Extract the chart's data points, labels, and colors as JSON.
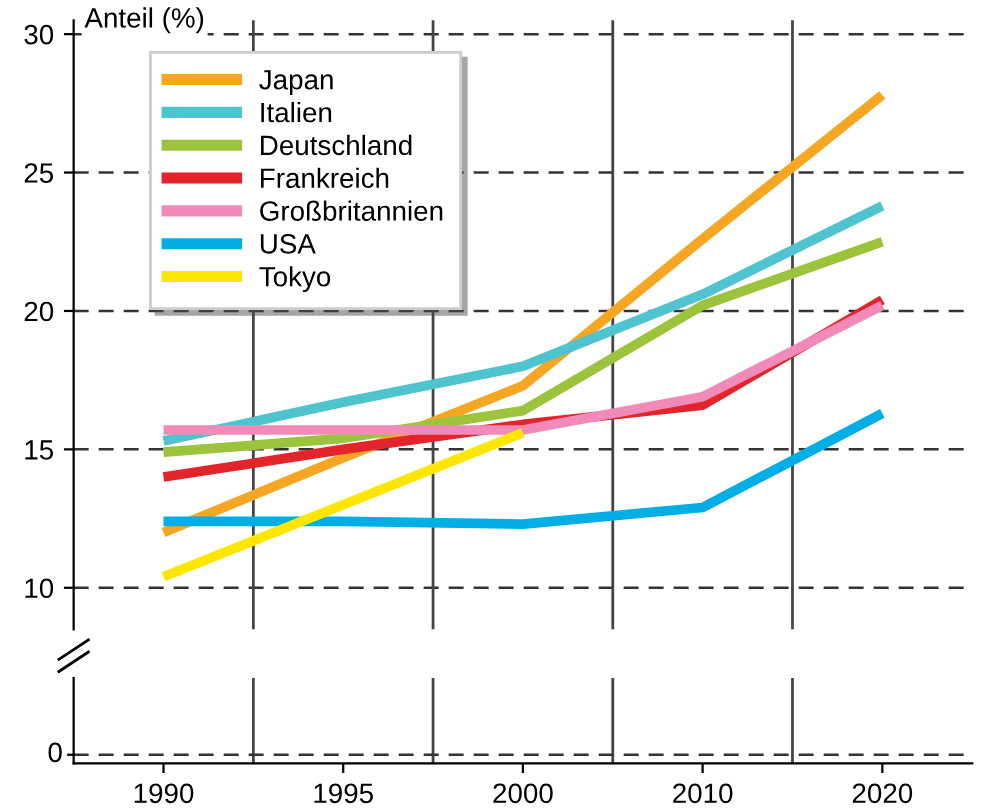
{
  "chart_data": {
    "type": "line",
    "ylabel": "Anteil (%)",
    "categories": [
      "1990",
      "1995",
      "2000",
      "2010",
      "2020"
    ],
    "series": [
      {
        "name": "Japan",
        "color": "#f5a623",
        "values": [
          12.0,
          14.7,
          17.3,
          22.6,
          27.8
        ]
      },
      {
        "name": "Italien",
        "color": "#4fc4cf",
        "values": [
          15.3,
          16.7,
          18.0,
          20.6,
          23.8
        ]
      },
      {
        "name": "Deutschland",
        "color": "#9bc43c",
        "values": [
          14.9,
          15.4,
          16.4,
          20.2,
          22.5
        ]
      },
      {
        "name": "Frankreich",
        "color": "#e3242b",
        "values": [
          14.0,
          15.0,
          15.9,
          16.6,
          20.4
        ]
      },
      {
        "name": "Großbritannien",
        "color": "#f08bb9",
        "values": [
          15.7,
          15.7,
          15.7,
          16.9,
          20.2
        ]
      },
      {
        "name": "USA",
        "color": "#00aee6",
        "values": [
          12.4,
          12.4,
          12.3,
          12.9,
          16.3
        ]
      },
      {
        "name": "Tokyo",
        "color": "#ffe600",
        "values": [
          10.4,
          13.0,
          15.6,
          null,
          null
        ]
      }
    ],
    "ylim": [
      8.5,
      30.5
    ],
    "yticks": [
      10,
      15,
      20,
      25,
      30
    ],
    "annotations": [
      "0"
    ],
    "grid": true,
    "legend": "top left",
    "marker": "none",
    "line_style": "solid"
  }
}
